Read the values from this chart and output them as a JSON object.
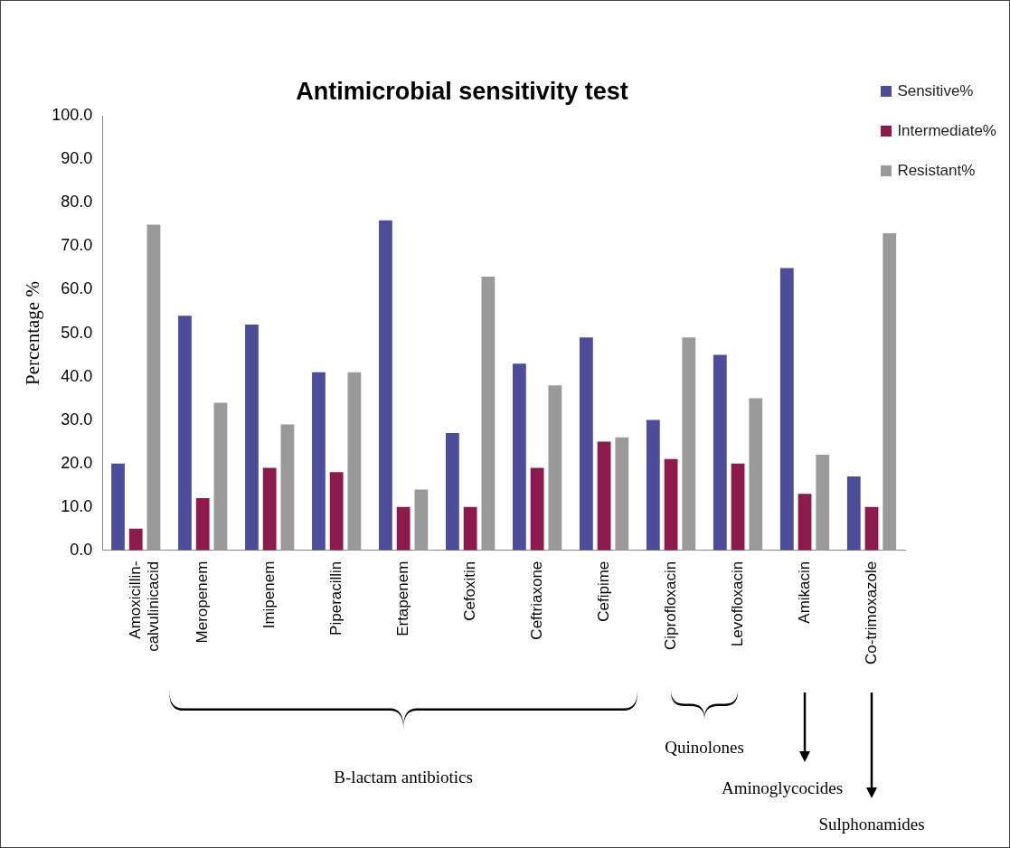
{
  "chart_data": {
    "type": "bar",
    "title": "Antimicrobial sensitivity test",
    "ylabel": "Percentage %",
    "categories": [
      "Amoxicillin-calvulinicacid",
      "Meropenem",
      "Imipenem",
      "Piperacillin",
      "Ertapenem",
      "Cefoxitin",
      "Ceftriaxone",
      "Cefipime",
      "Ciprofloxacin",
      "Levofloxacin",
      "Amikacin",
      "Co-trimoxazole"
    ],
    "series": [
      {
        "name": "Sensitive%",
        "color": "#4d4d9c",
        "values": [
          20,
          54,
          52,
          41,
          76,
          27,
          43,
          49,
          30,
          45,
          65,
          17
        ]
      },
      {
        "name": "Intermediate%",
        "color": "#8c1a4c",
        "values": [
          5,
          12,
          19,
          18,
          10,
          10,
          19,
          25,
          21,
          20,
          13,
          10
        ]
      },
      {
        "name": "Resistant%",
        "color": "#9a9a9a",
        "values": [
          75,
          34,
          29,
          41,
          14,
          63,
          38,
          26,
          49,
          35,
          22,
          73
        ]
      }
    ],
    "ylim": [
      0,
      100
    ],
    "yticks": [
      {
        "value": 0,
        "label": "0.0"
      },
      {
        "value": 10,
        "label": "10.0"
      },
      {
        "value": 20,
        "label": "20.0"
      },
      {
        "value": 30,
        "label": "30.0"
      },
      {
        "value": 40,
        "label": "40.0"
      },
      {
        "value": 50,
        "label": "50.0"
      },
      {
        "value": 60,
        "label": "60.0"
      },
      {
        "value": 70,
        "label": "70.0"
      },
      {
        "value": 80,
        "label": "80.0"
      },
      {
        "value": 90,
        "label": "90.0"
      },
      {
        "value": 100,
        "label": "100.0"
      }
    ],
    "grid": false,
    "legend": "top right",
    "annotations": [
      "B-lactam antibiotics",
      "Quinolones",
      "Aminoglycocides",
      "Sulphonamides"
    ]
  }
}
